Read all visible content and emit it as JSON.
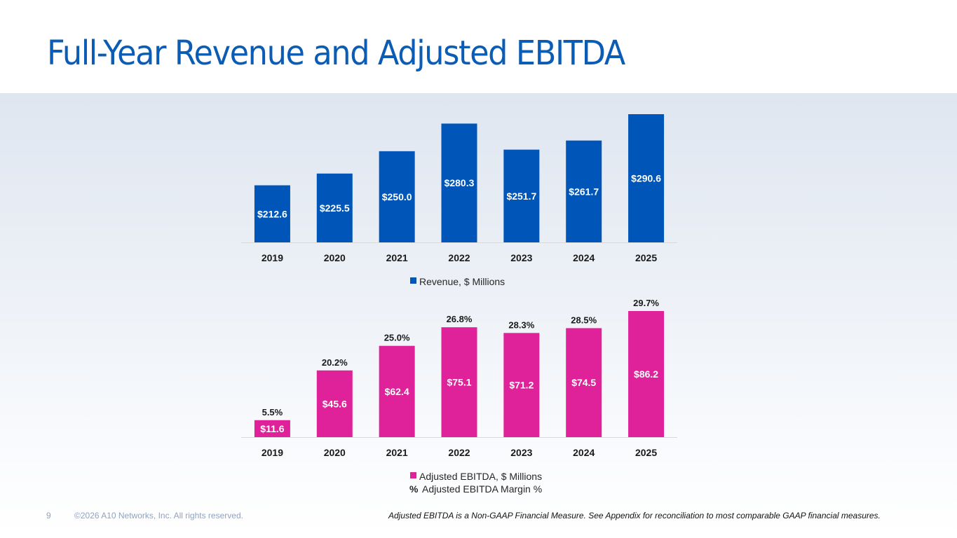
{
  "page": {
    "title": "Full-Year Revenue and Adjusted EBITDA",
    "page_number": "9",
    "copyright": "©2026 A10 Networks, Inc. All rights reserved.",
    "footnote": "Adjusted EBITDA is a Non-GAAP Financial Measure. See Appendix for reconciliation to most comparable GAAP financial measures."
  },
  "colors": {
    "title": "#0b5cb5",
    "revenue": "#0056b8",
    "ebitda": "#e0229a"
  },
  "chart_data": [
    {
      "type": "bar",
      "title": "",
      "categories": [
        "2019",
        "2020",
        "2021",
        "2022",
        "2023",
        "2024",
        "2025"
      ],
      "series": [
        {
          "name": "Revenue, $ Millions",
          "values": [
            212.6,
            225.5,
            250.0,
            280.3,
            251.7,
            261.7,
            290.6
          ],
          "labels": [
            "$212.6",
            "$225.5",
            "$250.0",
            "$280.3",
            "$251.7",
            "$261.7",
            "$290.6"
          ]
        }
      ],
      "xlabel": "",
      "ylabel": "",
      "ylim": [
        150,
        300
      ],
      "grid": false,
      "legend": "bottom"
    },
    {
      "type": "bar",
      "title": "",
      "categories": [
        "2019",
        "2020",
        "2021",
        "2022",
        "2023",
        "2024",
        "2025"
      ],
      "series": [
        {
          "name": "Adjusted EBITDA, $ Millions",
          "values": [
            11.6,
            45.6,
            62.4,
            75.1,
            71.2,
            74.5,
            86.2
          ],
          "labels": [
            "$11.6",
            "$45.6",
            "$62.4",
            "$75.1",
            "$71.2",
            "$74.5",
            "$86.2"
          ]
        },
        {
          "name": "Adjusted EBITDA Margin %",
          "values": [
            5.5,
            20.2,
            25.0,
            26.8,
            28.3,
            28.5,
            29.7
          ],
          "labels": [
            "5.5%",
            "20.2%",
            "25.0%",
            "26.8%",
            "28.3%",
            "28.5%",
            "29.7%"
          ],
          "legend_symbol": "%"
        }
      ],
      "xlabel": "",
      "ylabel": "",
      "ylim": [
        0,
        90
      ],
      "grid": false,
      "legend": "bottom"
    }
  ]
}
